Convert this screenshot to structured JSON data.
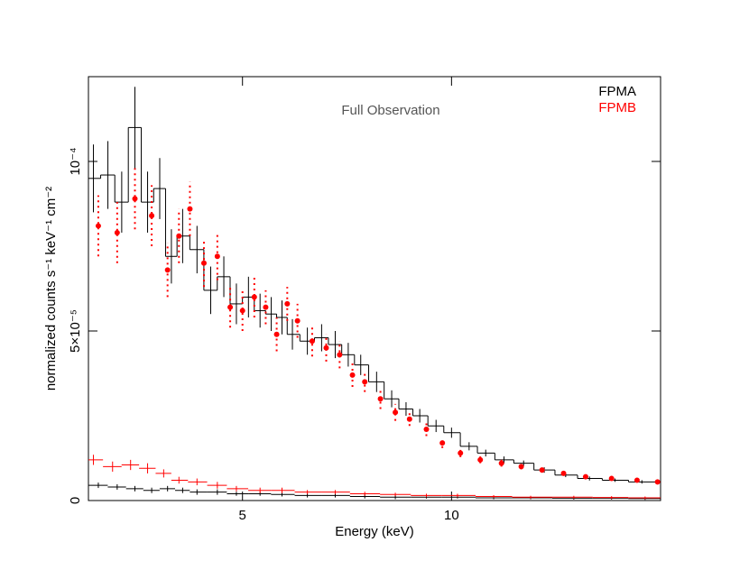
{
  "chart_data": {
    "type": "spectrum",
    "annotation": "Full Observation",
    "xlabel": "Energy (keV)",
    "ylabel": "normalized counts s⁻¹ keV⁻¹ cm⁻²",
    "xscale": "log",
    "xlim": [
      3,
      20
    ],
    "xticks": [
      5,
      10
    ],
    "ylim": [
      0,
      0.000125
    ],
    "yticks": [
      0,
      {
        "value": 5e-05,
        "label": "5×10⁻⁵"
      },
      {
        "value": 0.0001,
        "label": "10⁻⁴"
      }
    ],
    "legend": "upper right",
    "series": [
      {
        "name": "FPMA",
        "color": "#000000",
        "style": "step",
        "x": [
          3.05,
          3.2,
          3.35,
          3.5,
          3.65,
          3.8,
          3.95,
          4.1,
          4.3,
          4.5,
          4.7,
          4.9,
          5.1,
          5.3,
          5.5,
          5.7,
          5.9,
          6.2,
          6.5,
          6.8,
          7.1,
          7.4,
          7.8,
          8.2,
          8.6,
          9.0,
          9.5,
          10.0,
          10.6,
          11.2,
          11.9,
          12.7,
          13.6,
          14.6,
          15.8,
          17.2,
          18.8
        ],
        "values": [
          9.5e-05,
          9.6e-05,
          8.8e-05,
          0.00011,
          8.8e-05,
          9.2e-05,
          7.2e-05,
          7.8e-05,
          7.4e-05,
          6.2e-05,
          6.6e-05,
          5.8e-05,
          6e-05,
          5.6e-05,
          5.5e-05,
          5.4e-05,
          4.9e-05,
          4.7e-05,
          4.8e-05,
          4.6e-05,
          4.3e-05,
          4e-05,
          3.5e-05,
          3e-05,
          2.7e-05,
          2.5e-05,
          2.2e-05,
          2e-05,
          1.6e-05,
          1.4e-05,
          1.2e-05,
          1.1e-05,
          9e-06,
          7.5e-06,
          6.5e-06,
          6e-06,
          5.5e-06
        ],
        "errors": [
          1e-05,
          1e-05,
          9e-06,
          1.2e-05,
          9e-06,
          9e-06,
          8e-06,
          8e-06,
          7e-06,
          7e-06,
          6e-06,
          6e-06,
          6e-06,
          5e-06,
          5e-06,
          5e-06,
          4.5e-06,
          4e-06,
          4e-06,
          4e-06,
          3.5e-06,
          3e-06,
          3e-06,
          2.5e-06,
          2e-06,
          2e-06,
          1.8e-06,
          1.5e-06,
          1.2e-06,
          1e-06,
          1e-06,
          8e-07,
          8e-07,
          6e-07,
          6e-07,
          5e-07,
          5e-07
        ]
      },
      {
        "name": "FPMB",
        "color": "#ff0000",
        "style": "points",
        "x": [
          3.1,
          3.3,
          3.5,
          3.7,
          3.9,
          4.05,
          4.2,
          4.4,
          4.6,
          4.8,
          5.0,
          5.2,
          5.4,
          5.6,
          5.8,
          6.0,
          6.3,
          6.6,
          6.9,
          7.2,
          7.5,
          7.9,
          8.3,
          8.7,
          9.2,
          9.7,
          10.3,
          11.0,
          11.8,
          12.6,
          13.5,
          14.5,
          15.6,
          17.0,
          18.5,
          19.8
        ],
        "values": [
          8.1e-05,
          7.9e-05,
          8.9e-05,
          8.4e-05,
          6.8e-05,
          7.8e-05,
          8.6e-05,
          7e-05,
          7.2e-05,
          5.7e-05,
          5.6e-05,
          6e-05,
          5.7e-05,
          4.9e-05,
          5.8e-05,
          5.3e-05,
          4.7e-05,
          4.5e-05,
          4.3e-05,
          3.7e-05,
          3.5e-05,
          3e-05,
          2.6e-05,
          2.4e-05,
          2.1e-05,
          1.7e-05,
          1.4e-05,
          1.2e-05,
          1.1e-05,
          1e-05,
          9e-06,
          8e-06,
          7e-06,
          6.5e-06,
          6e-06,
          5.5e-06
        ],
        "errors": [
          9e-06,
          9e-06,
          9e-06,
          9e-06,
          8e-06,
          8e-06,
          8e-06,
          7e-06,
          7e-06,
          6e-06,
          6e-06,
          6e-06,
          5e-06,
          5e-06,
          5e-06,
          5e-06,
          4.5e-06,
          4e-06,
          4e-06,
          3.5e-06,
          3e-06,
          3e-06,
          2.5e-06,
          2e-06,
          2e-06,
          1.5e-06,
          1.2e-06,
          1e-06,
          1e-06,
          8e-07,
          8e-07,
          6e-07,
          6e-07,
          5e-07,
          5e-07,
          5e-07
        ]
      },
      {
        "color": "#000000",
        "style": "cross",
        "x": [
          3.1,
          3.3,
          3.5,
          3.7,
          3.9,
          4.1,
          4.3,
          4.6,
          4.9,
          5.3,
          5.7,
          6.2,
          6.8,
          7.5,
          8.3,
          9.2,
          10.2,
          11.5,
          13,
          15,
          17,
          19
        ],
        "values": [
          4.5e-06,
          4e-06,
          3.5e-06,
          3e-06,
          3.5e-06,
          3e-06,
          2.5e-06,
          2.5e-06,
          2e-06,
          2e-06,
          1.8e-06,
          1.5e-06,
          1.5e-06,
          1.2e-06,
          1e-06,
          1e-06,
          1e-06,
          8e-07,
          8e-07,
          7e-07,
          7e-07,
          6e-07
        ],
        "errors": [
          8e-07,
          8e-07,
          8e-07,
          8e-07,
          8e-07,
          8e-07,
          8e-07,
          8e-07,
          6e-07,
          6e-07,
          6e-07,
          6e-07,
          6e-07,
          6e-07,
          6e-07,
          4e-07,
          4e-07,
          4e-07,
          4e-07,
          4e-07,
          4e-07,
          4e-07
        ]
      },
      {
        "color": "#ff0000",
        "style": "cross",
        "x": [
          3.05,
          3.25,
          3.45,
          3.65,
          3.85,
          4.05,
          4.3,
          4.6,
          4.9,
          5.3,
          5.7,
          6.2,
          6.8,
          7.5,
          8.3,
          9.2,
          10.2,
          11.5,
          13,
          15,
          17,
          19
        ],
        "values": [
          1.2e-05,
          1e-05,
          1.05e-05,
          9.5e-06,
          8e-06,
          6e-06,
          5.5e-06,
          4.5e-06,
          3.5e-06,
          3e-06,
          3e-06,
          2.5e-06,
          2.5e-06,
          2e-06,
          1.8e-06,
          1.5e-06,
          1.5e-06,
          1.2e-06,
          1e-06,
          1e-06,
          9e-07,
          8e-07
        ],
        "errors": [
          1.5e-06,
          1.5e-06,
          1.5e-06,
          1.5e-06,
          1.2e-06,
          1e-06,
          1e-06,
          1e-06,
          8e-07,
          8e-07,
          8e-07,
          6e-07,
          6e-07,
          6e-07,
          5e-07,
          5e-07,
          5e-07,
          4e-07,
          4e-07,
          4e-07,
          4e-07,
          4e-07
        ]
      }
    ]
  }
}
